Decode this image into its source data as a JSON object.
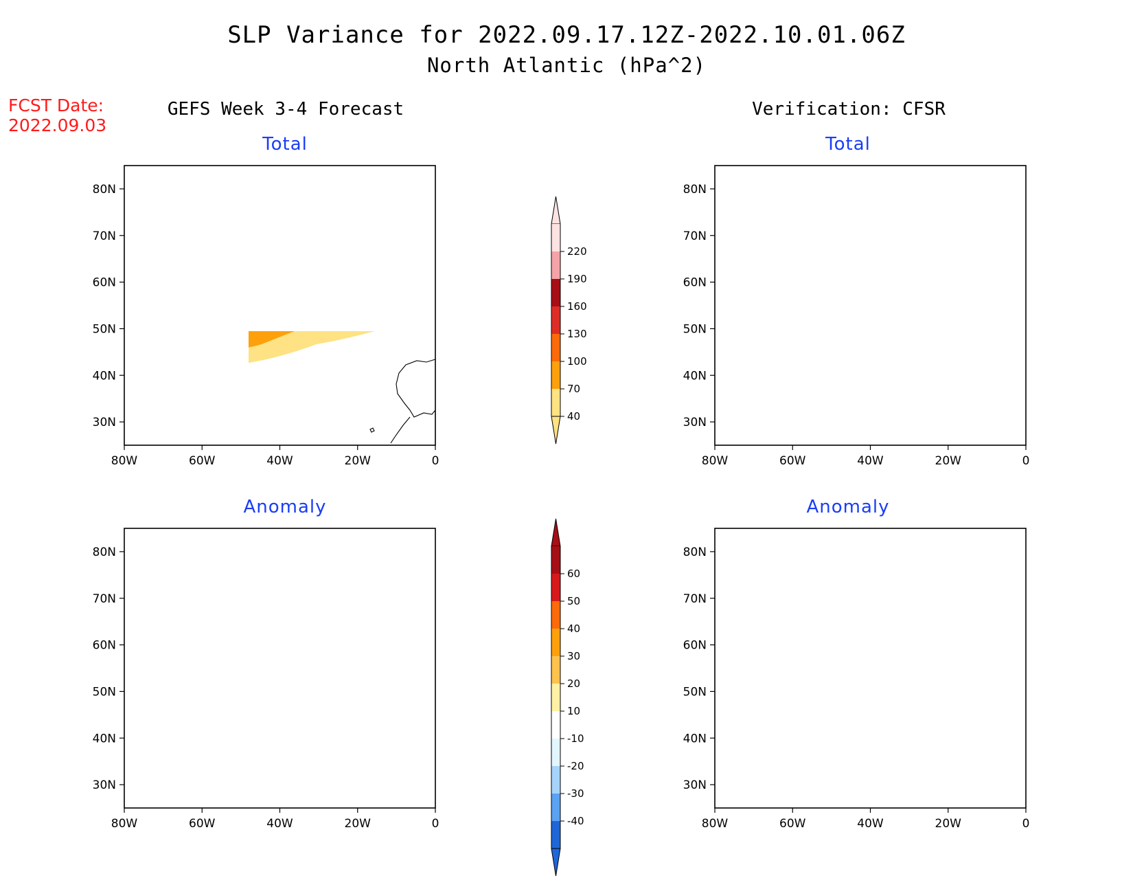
{
  "title": {
    "line1": "SLP Variance for 2022.09.17.12Z-2022.10.01.06Z",
    "line2": "North Atlantic (hPa^2)"
  },
  "fcst_label": {
    "line1": "FCST Date:",
    "line2": "2022.09.03"
  },
  "columns": {
    "left": "GEFS Week 3-4 Forecast",
    "right": "Verification: CFSR"
  },
  "panels": [
    {
      "id": "gefs-total",
      "title": "Total"
    },
    {
      "id": "cfsr-total",
      "title": "Total"
    },
    {
      "id": "gefs-anomaly",
      "title": "Anomaly"
    },
    {
      "id": "cfsr-anomaly",
      "title": "Anomaly"
    }
  ],
  "axes": {
    "lon_ticks": [
      "80W",
      "60W",
      "40W",
      "20W",
      "0"
    ],
    "lat_ticks": [
      "80N",
      "70N",
      "60N",
      "50N",
      "40N",
      "30N"
    ],
    "lon_range": [
      -80,
      0
    ],
    "lat_range": [
      25,
      85
    ]
  },
  "colorbars": {
    "total": {
      "labels": [
        "220",
        "190",
        "160",
        "130",
        "100",
        "70",
        "40"
      ],
      "colors": [
        "#fde2e2",
        "#f4a3a8",
        "#a50f15",
        "#de2d26",
        "#fc6a0a",
        "#fda00c",
        "#fee283"
      ]
    },
    "anomaly": {
      "labels": [
        "60",
        "50",
        "40",
        "30",
        "20",
        "10",
        "-10",
        "-20",
        "-30",
        "-40"
      ],
      "colors": [
        "#a50f15",
        "#d7191c",
        "#fc6a0a",
        "#fda00c",
        "#fec24d",
        "#fef1a6",
        "#ffffff",
        "#e2f6ff",
        "#a6d3fb",
        "#5aa2f2",
        "#1f67d8"
      ]
    }
  },
  "colors": {
    "title": "#000000",
    "panel_title": "#1a3df5",
    "fcst_date": "#ff1a1a",
    "total_levels": {
      "40": "#fee283",
      "70": "#fda00c",
      "100": "#fc6a0a",
      "130": "#de2d26",
      "160": "#a50f15",
      "190": "#f4a3a8",
      "220": "#fde2e2"
    },
    "anomaly_levels": {
      "10": "#fef1a6",
      "20": "#fec24d",
      "30": "#fda00c",
      "40": "#fc6a0a",
      "50": "#d7191c",
      "60": "#a50f15",
      "-10": "#e2f6ff",
      "-20": "#a6d3fb",
      "-30": "#5aa2f2",
      "-40": "#1f67d8"
    }
  }
}
